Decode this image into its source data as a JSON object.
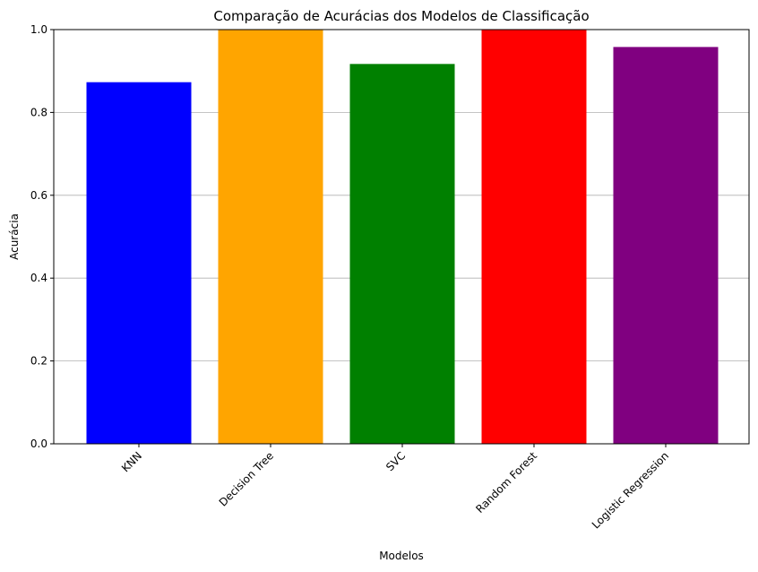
{
  "chart_data": {
    "type": "bar",
    "title": "Comparação de Acurácias dos Modelos de Classificação",
    "xlabel": "Modelos",
    "ylabel": "Acurácia",
    "categories": [
      "KNN",
      "Decision Tree",
      "SVC",
      "Random Forest",
      "Logistic Regression"
    ],
    "values": [
      0.873,
      1.0,
      0.917,
      1.0,
      0.958
    ],
    "colors": [
      "#0000ff",
      "#ffa500",
      "#008000",
      "#ff0000",
      "#800080"
    ],
    "ylim": [
      0,
      1.0
    ],
    "yticks": [
      "0.0",
      "0.2",
      "0.4",
      "0.6",
      "0.8",
      "1.0"
    ],
    "ytick_values": [
      0,
      0.2,
      0.4,
      0.6,
      0.8,
      1.0
    ],
    "grid": "horizontal",
    "xtick_rotation_deg": 45
  }
}
